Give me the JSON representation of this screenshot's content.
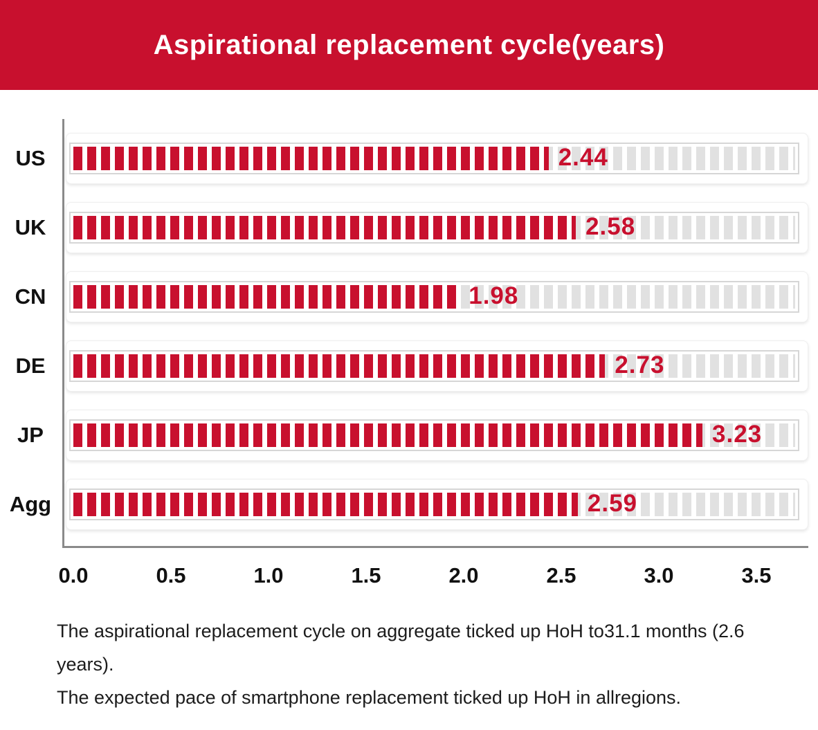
{
  "chart_data": {
    "type": "bar",
    "orientation": "horizontal",
    "title": "Aspirational replacement cycle(years)",
    "categories": [
      "US",
      "UK",
      "CN",
      "DE",
      "JP",
      "Agg"
    ],
    "values": [
      2.44,
      2.58,
      1.98,
      2.73,
      3.23,
      2.59
    ],
    "value_labels": [
      "2.44",
      "2.58",
      "1.98",
      "2.73",
      "3.23",
      "2.59"
    ],
    "x_ticks": [
      "0.0",
      "0.5",
      "1.0",
      "1.5",
      "2.0",
      "2.5",
      "3.0",
      "3.5"
    ],
    "xlim": [
      0,
      3.5
    ],
    "track_max": 3.706,
    "xlabel": "",
    "ylabel": "",
    "grid": false,
    "legend": false,
    "bar_style": "dashed-segment progress bars on white cards",
    "colors": {
      "fill": "#c8102e",
      "track_dash": "#e1e1e1",
      "banner": "#c8102e",
      "value_text": "#c8102e",
      "axis": "#8a8a8a"
    }
  },
  "notes": {
    "lines": [
      "The aspirational replacement cycle on aggregate ticked up HoH to31.1 months (2.6",
      "years).",
      "The expected pace of smartphone replacement ticked up HoH in allregions."
    ]
  }
}
